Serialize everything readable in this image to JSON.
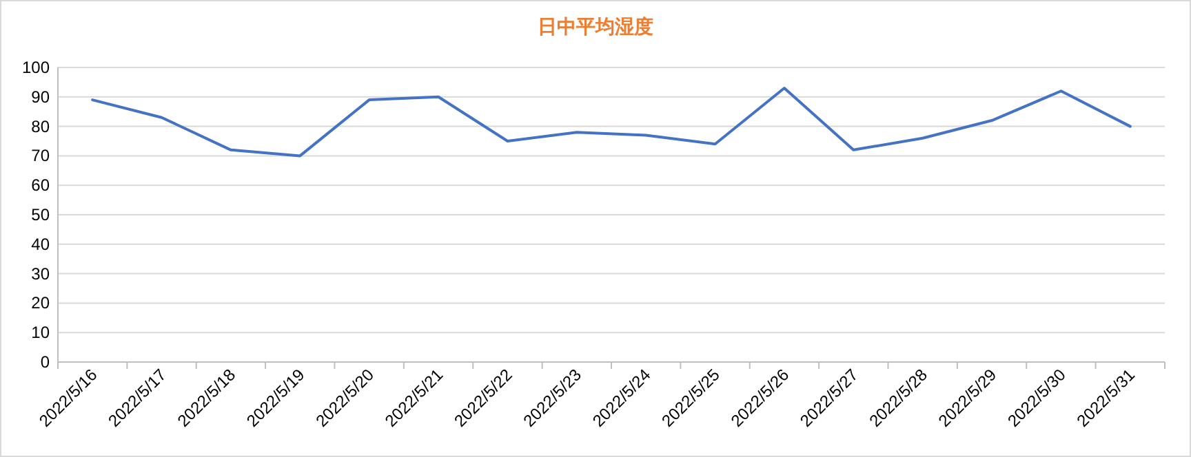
{
  "chart_data": {
    "type": "line",
    "title": "日中平均湿度",
    "categories": [
      "2022/5/16",
      "2022/5/17",
      "2022/5/18",
      "2022/5/19",
      "2022/5/20",
      "2022/5/21",
      "2022/5/22",
      "2022/5/23",
      "2022/5/24",
      "2022/5/25",
      "2022/5/26",
      "2022/5/27",
      "2022/5/28",
      "2022/5/29",
      "2022/5/30",
      "2022/5/31"
    ],
    "series": [
      {
        "color": "#4472c4",
        "values": [
          89,
          83,
          72,
          70,
          89,
          90,
          75,
          78,
          77,
          74,
          93,
          72,
          76,
          82,
          92,
          80
        ]
      }
    ],
    "ylim": [
      0,
      100
    ],
    "yticks": [
      0,
      10,
      20,
      30,
      40,
      50,
      60,
      70,
      80,
      90,
      100
    ],
    "grid": "y"
  }
}
